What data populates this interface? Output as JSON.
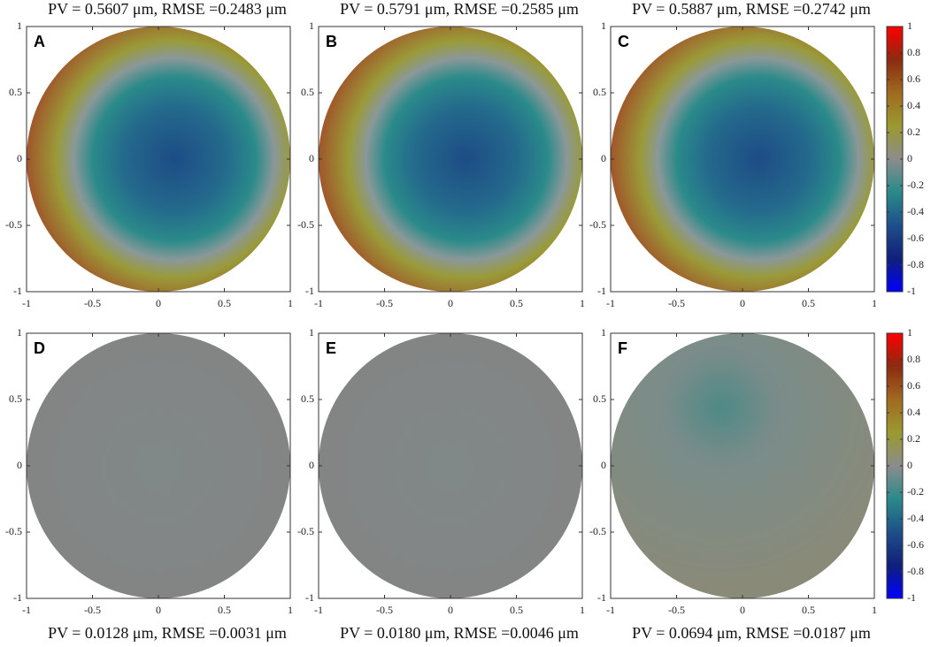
{
  "chart_data": [
    {
      "type": "heatmap",
      "label": "A",
      "title": "PV = 0.5607 μm, RMSE =0.2483 μm",
      "xlim": [
        -1,
        1
      ],
      "ylim": [
        -1,
        1
      ],
      "xticks": [
        -1,
        -0.5,
        0,
        0.5,
        1
      ],
      "yticks": [
        -1,
        -0.5,
        0,
        0.5,
        1
      ]
    },
    {
      "type": "heatmap",
      "label": "B",
      "title": "PV = 0.5791 μm, RMSE =0.2585 μm",
      "xlim": [
        -1,
        1
      ],
      "ylim": [
        -1,
        1
      ],
      "xticks": [
        -1,
        -0.5,
        0,
        0.5,
        1
      ],
      "yticks": [
        -1,
        -0.5,
        0,
        0.5,
        1
      ]
    },
    {
      "type": "heatmap",
      "label": "C",
      "title": "PV = 0.5887 μm, RMSE =0.2742 μm",
      "xlim": [
        -1,
        1
      ],
      "ylim": [
        -1,
        1
      ],
      "xticks": [
        -1,
        -0.5,
        0,
        0.5,
        1
      ],
      "yticks": [
        -1,
        -0.5,
        0,
        0.5,
        1
      ],
      "colorbar": {
        "clim": [
          -1,
          1
        ],
        "ticks": [
          -1,
          -0.8,
          -0.6,
          -0.4,
          -0.2,
          0,
          0.2,
          0.4,
          0.6,
          0.8,
          1
        ],
        "colors": [
          "#0000ff",
          "#10207a",
          "#1e4f8a",
          "#2a8a8a",
          "#8c8c8c",
          "#9a9a30",
          "#a06a20",
          "#8b2a10",
          "#ff0000"
        ]
      }
    },
    {
      "type": "heatmap",
      "label": "D",
      "title": "PV = 0.0128 μm, RMSE =0.0031 μm",
      "xlim": [
        -1,
        1
      ],
      "ylim": [
        -1,
        1
      ],
      "xticks": [
        -1,
        -0.5,
        0,
        0.5,
        1
      ],
      "yticks": [
        -1,
        -0.5,
        0,
        0.5,
        1
      ]
    },
    {
      "type": "heatmap",
      "label": "E",
      "title": "PV = 0.0180 μm, RMSE =0.0046 μm",
      "xlim": [
        -1,
        1
      ],
      "ylim": [
        -1,
        1
      ],
      "xticks": [
        -1,
        -0.5,
        0,
        0.5,
        1
      ],
      "yticks": [
        -1,
        -0.5,
        0,
        0.5,
        1
      ]
    },
    {
      "type": "heatmap",
      "label": "F",
      "title": "PV = 0.0694 μm, RMSE =0.0187 μm",
      "xlim": [
        -1,
        1
      ],
      "ylim": [
        -1,
        1
      ],
      "xticks": [
        -1,
        -0.5,
        0,
        0.5,
        1
      ],
      "yticks": [
        -1,
        -0.5,
        0,
        0.5,
        1
      ],
      "colorbar": {
        "clim": [
          -1,
          1
        ],
        "ticks": [
          -1,
          -0.8,
          -0.6,
          -0.4,
          -0.2,
          0,
          0.2,
          0.4,
          0.6,
          0.8,
          1
        ],
        "colors": [
          "#0000ff",
          "#10207a",
          "#1e4f8a",
          "#2a8a8a",
          "#8c8c8c",
          "#9a9a30",
          "#a06a20",
          "#8b2a10",
          "#ff0000"
        ]
      }
    }
  ]
}
